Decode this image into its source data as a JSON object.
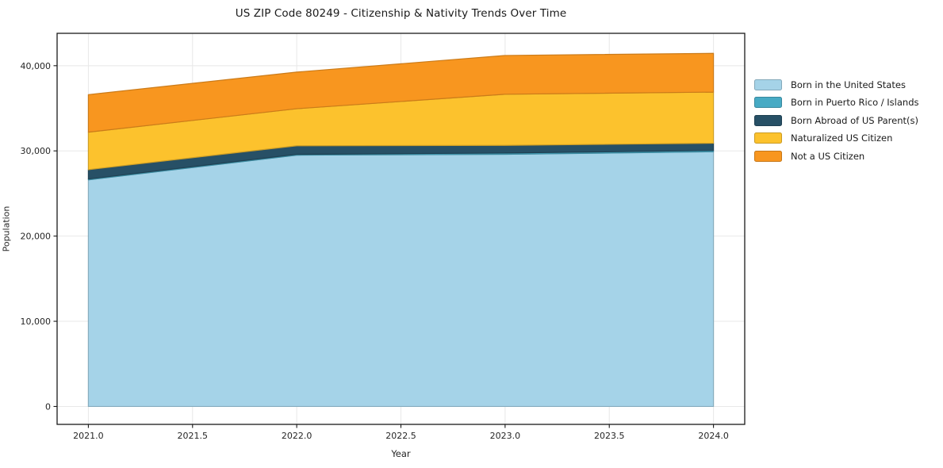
{
  "chart_data": {
    "type": "area",
    "stacked": true,
    "title": "US ZIP Code 80249 - Citizenship & Nativity Trends Over Time",
    "xlabel": "Year",
    "ylabel": "Population",
    "x": [
      2021,
      2022,
      2023,
      2024
    ],
    "series": [
      {
        "name": "Born in the United States",
        "color": "#a5d3e8",
        "values": [
          26600,
          29500,
          29600,
          29900
        ]
      },
      {
        "name": "Born in Puerto Rico / Islands",
        "color": "#47aac4",
        "values": [
          100,
          100,
          150,
          150
        ]
      },
      {
        "name": "Born Abroad of US Parent(s)",
        "color": "#275066",
        "values": [
          1100,
          1000,
          900,
          850
        ]
      },
      {
        "name": "Naturalized US Citizen",
        "color": "#fcc22d",
        "values": [
          4400,
          4350,
          6000,
          6000
        ]
      },
      {
        "name": "Not a US Citizen",
        "color": "#f8961f",
        "values": [
          4400,
          4300,
          4550,
          4550
        ]
      }
    ],
    "totals_by_year": [
      36600,
      39250,
      41200,
      41450
    ],
    "xlim": [
      2020.85,
      2024.15
    ],
    "ylim": [
      -2100,
      43800
    ],
    "x_ticks": {
      "values": [
        2021.0,
        2021.5,
        2022.0,
        2022.5,
        2023.0,
        2023.5,
        2024.0
      ],
      "labels": [
        "2021.0",
        "2021.5",
        "2022.0",
        "2022.5",
        "2023.0",
        "2023.5",
        "2024.0"
      ]
    },
    "y_ticks": {
      "values": [
        0,
        10000,
        20000,
        30000,
        40000
      ],
      "labels": [
        "0",
        "10,000",
        "20,000",
        "30,000",
        "40,000"
      ]
    },
    "grid": true,
    "legend_position": "right-outside-top",
    "colors": {
      "grid": "#e8e8e8",
      "spine": "#1a1a1a",
      "tick_text": "#262626",
      "background": "#ffffff"
    }
  }
}
